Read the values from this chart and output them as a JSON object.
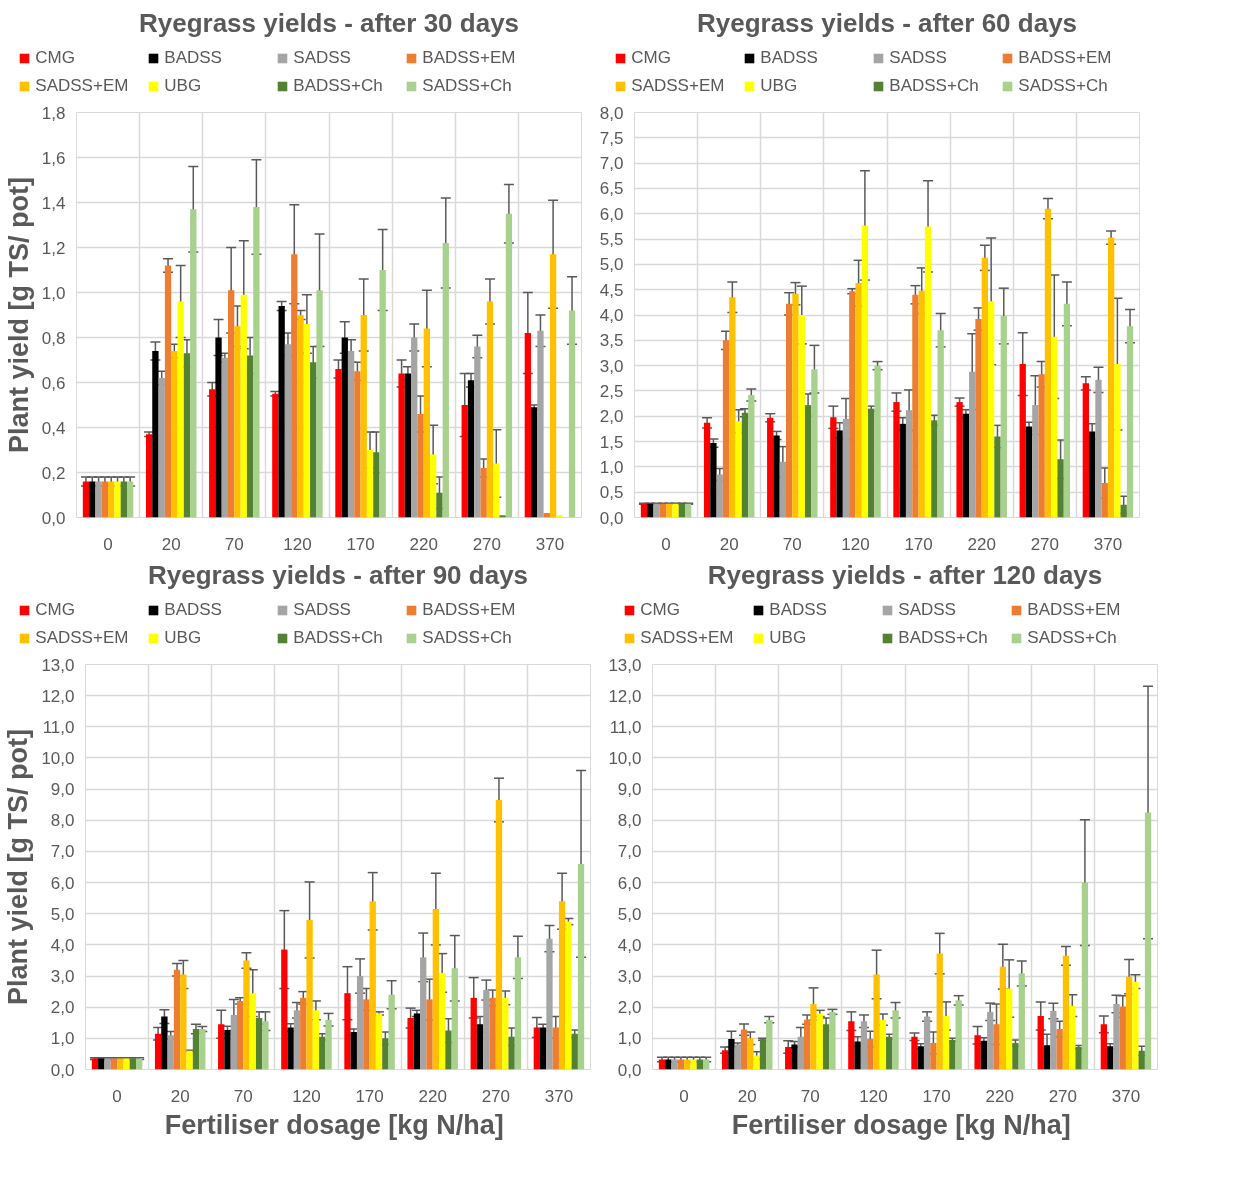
{
  "chart_data": [
    {
      "type": "bar",
      "title": "Ryegrass yields - after 30 days",
      "ylabel": "Plant yield [g TS/ pot]",
      "categories": [
        "0",
        "20",
        "70",
        "120",
        "170",
        "220",
        "270",
        "370"
      ],
      "ylim": [
        0,
        1.8
      ],
      "yticks": [
        {
          "value": 0,
          "label": "0,0"
        },
        {
          "value": 0.2,
          "label": "0,2"
        },
        {
          "value": 0.4,
          "label": "0,4"
        },
        {
          "value": 0.6,
          "label": "0,6"
        },
        {
          "value": 0.8,
          "label": "0,8"
        },
        {
          "value": 1.0,
          "label": "1,0"
        },
        {
          "value": 1.2,
          "label": "1,2"
        },
        {
          "value": 1.4,
          "label": "1,4"
        },
        {
          "value": 1.6,
          "label": "1,6"
        },
        {
          "value": 1.8,
          "label": "1,8"
        }
      ],
      "grid": true,
      "legend": "top",
      "series": [
        {
          "name": "CMG",
          "color": "#ff0000",
          "values": [
            0.16,
            0.37,
            0.57,
            0.55,
            0.66,
            0.64,
            0.5,
            0.82
          ],
          "errors": [
            0.02,
            0.01,
            0.03,
            0.01,
            0.04,
            0.06,
            0.14,
            0.18
          ]
        },
        {
          "name": "BADSS",
          "color": "#000000",
          "values": [
            0.16,
            0.74,
            0.8,
            0.94,
            0.8,
            0.64,
            0.61,
            0.49
          ],
          "errors": [
            0.02,
            0.04,
            0.08,
            0.02,
            0.07,
            0.03,
            0.03,
            0.01
          ]
        },
        {
          "name": "SADSS",
          "color": "#a5a5a5",
          "values": [
            0.16,
            0.62,
            0.71,
            0.77,
            0.74,
            0.8,
            0.76,
            0.83
          ],
          "errors": [
            0.02,
            0.03,
            0.02,
            0.05,
            0.05,
            0.06,
            0.05,
            0.07
          ]
        },
        {
          "name": "BADSS+EM",
          "color": "#ed7d31",
          "values": [
            0.16,
            1.12,
            1.01,
            1.17,
            0.65,
            0.46,
            0.22,
            0.02
          ],
          "errors": [
            0.02,
            0.03,
            0.19,
            0.22,
            0.04,
            0.08,
            0.04,
            null
          ]
        },
        {
          "name": "SADSS+EM",
          "color": "#ffc000",
          "values": [
            0.16,
            0.74,
            0.85,
            0.9,
            0.9,
            0.84,
            0.96,
            1.17
          ],
          "errors": [
            0.02,
            0.03,
            0.09,
            0.02,
            0.16,
            0.17,
            0.1,
            0.24
          ]
        },
        {
          "name": "UBG",
          "color": "#ffff00",
          "values": [
            0.16,
            0.96,
            0.99,
            0.86,
            0.3,
            0.28,
            0.24,
            0.01
          ],
          "errors": [
            0.02,
            0.16,
            0.24,
            0.13,
            0.08,
            0.13,
            0.15,
            null
          ]
        },
        {
          "name": "BADSS+Ch",
          "color": "#548235",
          "values": [
            0.16,
            0.73,
            0.72,
            0.69,
            0.29,
            0.11,
            0.01,
            0
          ],
          "errors": [
            0.02,
            0.06,
            0.08,
            0.07,
            0.09,
            0.07,
            null,
            null
          ]
        },
        {
          "name": "SADSS+Ch",
          "color": "#a9d18e",
          "values": [
            0.16,
            1.37,
            1.38,
            1.01,
            1.1,
            1.22,
            1.35,
            0.92
          ],
          "errors": [
            0.02,
            0.19,
            0.21,
            0.25,
            0.18,
            0.2,
            0.13,
            0.15
          ]
        }
      ]
    },
    {
      "type": "bar",
      "title": "Ryegrass yields - after 60 days",
      "categories": [
        "0",
        "20",
        "70",
        "120",
        "170",
        "220",
        "270",
        "370"
      ],
      "ylim": [
        0,
        8
      ],
      "yticks": [
        {
          "value": 0,
          "label": "0,0"
        },
        {
          "value": 0.5,
          "label": "0,5"
        },
        {
          "value": 1,
          "label": "1,0"
        },
        {
          "value": 1.5,
          "label": "1,5"
        },
        {
          "value": 2,
          "label": "2,0"
        },
        {
          "value": 2.5,
          "label": "2,5"
        },
        {
          "value": 3,
          "label": "3,0"
        },
        {
          "value": 3.5,
          "label": "3,5"
        },
        {
          "value": 4,
          "label": "4,0"
        },
        {
          "value": 4.5,
          "label": "4,5"
        },
        {
          "value": 5,
          "label": "5,0"
        },
        {
          "value": 5.5,
          "label": "5,5"
        },
        {
          "value": 6,
          "label": "6,0"
        },
        {
          "value": 6.5,
          "label": "6,5"
        },
        {
          "value": 7,
          "label": "7,0"
        },
        {
          "value": 7.5,
          "label": "7,5"
        },
        {
          "value": 8,
          "label": "8,0"
        }
      ],
      "grid": true,
      "legend": "top",
      "series": [
        {
          "name": "CMG",
          "color": "#ff0000",
          "values": [
            0.27,
            1.87,
            1.97,
            1.98,
            2.28,
            2.28,
            3.03,
            2.65
          ],
          "errors": [
            0.01,
            0.1,
            0.08,
            0.22,
            0.18,
            0.08,
            0.62,
            0.13
          ]
        },
        {
          "name": "BADSS",
          "color": "#000000",
          "values": [
            0.27,
            1.47,
            1.62,
            1.72,
            1.85,
            2.05,
            1.8,
            1.7
          ],
          "errors": [
            0.01,
            0.08,
            0.08,
            0.15,
            0.12,
            0.08,
            0.08,
            0.15
          ]
        },
        {
          "name": "SADSS",
          "color": "#a5a5a5",
          "values": [
            0.27,
            0.85,
            1.1,
            1.95,
            2.12,
            2.88,
            2.22,
            2.72
          ],
          "errors": [
            0.01,
            0.12,
            0.3,
            0.4,
            0.4,
            0.75,
            0.58,
            0.25
          ]
        },
        {
          "name": "BADSS+EM",
          "color": "#ed7d31",
          "values": [
            0.27,
            3.5,
            4.22,
            4.47,
            4.4,
            3.92,
            2.83,
            0.68
          ],
          "errors": [
            0.01,
            0.18,
            0.22,
            0.05,
            0.18,
            0.22,
            0.25,
            0.3
          ]
        },
        {
          "name": "SADSS+EM",
          "color": "#ffc000",
          "values": [
            0.27,
            4.35,
            4.42,
            4.63,
            4.48,
            5.13,
            6.1,
            5.53
          ],
          "errors": [
            0.01,
            0.3,
            0.22,
            0.45,
            0.45,
            0.25,
            0.2,
            0.13
          ]
        },
        {
          "name": "UBG",
          "color": "#ffff00",
          "values": [
            0.27,
            1.9,
            4.0,
            5.77,
            5.75,
            4.27,
            3.57,
            3.03
          ],
          "errors": [
            0.01,
            0.23,
            0.57,
            1.08,
            0.9,
            1.25,
            1.22,
            1.3
          ]
        },
        {
          "name": "BADSS+Ch",
          "color": "#548235",
          "values": [
            0.27,
            2.07,
            2.22,
            2.15,
            1.92,
            1.6,
            1.15,
            0.25
          ],
          "errors": [
            0.01,
            0.08,
            0.22,
            0.05,
            0.1,
            0.22,
            0.38,
            0.17
          ]
        },
        {
          "name": "SADSS+Ch",
          "color": "#a9d18e",
          "values": [
            0.27,
            2.42,
            2.93,
            3.0,
            3.7,
            3.98,
            4.22,
            3.78
          ],
          "errors": [
            0.01,
            0.12,
            0.47,
            0.08,
            0.33,
            0.55,
            0.43,
            0.33
          ]
        }
      ]
    },
    {
      "type": "bar",
      "title": "Ryegrass yields - after 90 days",
      "ylabel": "Plant yield [g TS/ pot]",
      "xlabel": "Fertiliser dosage  [kg N/ha]",
      "categories": [
        "0",
        "20",
        "70",
        "120",
        "170",
        "220",
        "270",
        "370"
      ],
      "ylim": [
        0,
        13
      ],
      "yticks": [
        {
          "value": 0,
          "label": "0,0"
        },
        {
          "value": 1,
          "label": "1,0"
        },
        {
          "value": 2,
          "label": "2,0"
        },
        {
          "value": 3,
          "label": "3,0"
        },
        {
          "value": 4,
          "label": "4,0"
        },
        {
          "value": 5,
          "label": "5,0"
        },
        {
          "value": 6,
          "label": "6,0"
        },
        {
          "value": 7,
          "label": "7,0"
        },
        {
          "value": 8,
          "label": "8,0"
        },
        {
          "value": 9,
          "label": "9,0"
        },
        {
          "value": 10,
          "label": "10,0"
        },
        {
          "value": 11,
          "label": "11,0"
        },
        {
          "value": 12,
          "label": "12,0"
        },
        {
          "value": 13,
          "label": "13,0"
        }
      ],
      "grid": true,
      "legend": "top",
      "series": [
        {
          "name": "CMG",
          "color": "#ff0000",
          "values": [
            0.35,
            1.15,
            1.45,
            3.85,
            2.45,
            1.65,
            2.3,
            1.35
          ],
          "errors": [
            0.03,
            0.2,
            0.45,
            1.25,
            0.85,
            0.32,
            0.65,
            0.32
          ]
        },
        {
          "name": "BADSS",
          "color": "#000000",
          "values": [
            0.35,
            1.7,
            1.27,
            1.35,
            1.2,
            1.8,
            1.45,
            1.35
          ],
          "errors": [
            0.03,
            0.22,
            0.12,
            0.12,
            0.1,
            0.1,
            0.25,
            0.1
          ]
        },
        {
          "name": "SADSS",
          "color": "#a5a5a5",
          "values": [
            0.35,
            1.1,
            1.75,
            1.9,
            3.0,
            3.6,
            2.55,
            4.2
          ],
          "errors": [
            0.03,
            0.12,
            0.5,
            0.25,
            0.55,
            0.78,
            0.32,
            0.42
          ]
        },
        {
          "name": "BADSS+EM",
          "color": "#ed7d31",
          "values": [
            0.35,
            3.2,
            2.2,
            2.3,
            2.25,
            2.25,
            2.3,
            1.35
          ],
          "errors": [
            0.03,
            0.2,
            0.1,
            0.2,
            0.35,
            0.65,
            0.25,
            0.35
          ]
        },
        {
          "name": "SADSS+EM",
          "color": "#ffc000",
          "values": [
            0.35,
            3.05,
            3.5,
            4.8,
            5.4,
            5.15,
            8.65,
            5.4
          ],
          "errors": [
            0.03,
            0.45,
            0.25,
            1.22,
            0.92,
            1.15,
            0.7,
            0.9
          ]
        },
        {
          "name": "UBG",
          "color": "#ffff00",
          "values": [
            0.35,
            0.6,
            2.45,
            1.9,
            1.8,
            3.1,
            2.3,
            4.75
          ],
          "errors": [
            0.03,
            0.02,
            0.75,
            0.3,
            0.05,
            0.62,
            0.22,
            0.1
          ]
        },
        {
          "name": "BADSS+Ch",
          "color": "#548235",
          "values": [
            0.35,
            1.3,
            1.65,
            1.05,
            1.0,
            1.25,
            1.05,
            1.15
          ],
          "errors": [
            0.03,
            0.15,
            0.2,
            0.1,
            0.2,
            0.38,
            0.28,
            0.12
          ]
        },
        {
          "name": "SADSS+Ch",
          "color": "#a9d18e",
          "values": [
            0.35,
            1.3,
            1.55,
            1.6,
            2.4,
            3.25,
            3.6,
            6.6
          ],
          "errors": [
            0.03,
            0.08,
            0.3,
            0.2,
            0.45,
            1.05,
            0.68,
            3.0
          ]
        }
      ]
    },
    {
      "type": "bar",
      "title": "Ryegrass yields - after 120 days",
      "xlabel": "Fertiliser dosage  [kg N/ha]",
      "categories": [
        "0",
        "20",
        "70",
        "120",
        "170",
        "220",
        "270",
        "370"
      ],
      "ylim": [
        0,
        13
      ],
      "yticks": [
        {
          "value": 0,
          "label": "0,0"
        },
        {
          "value": 1,
          "label": "1,0"
        },
        {
          "value": 2,
          "label": "2,0"
        },
        {
          "value": 3,
          "label": "3,0"
        },
        {
          "value": 4,
          "label": "4,0"
        },
        {
          "value": 5,
          "label": "5,0"
        },
        {
          "value": 6,
          "label": "6,0"
        },
        {
          "value": 7,
          "label": "7,0"
        },
        {
          "value": 8,
          "label": "8,0"
        },
        {
          "value": 9,
          "label": "9,0"
        },
        {
          "value": 10,
          "label": "10,0"
        },
        {
          "value": 11,
          "label": "11,0"
        },
        {
          "value": 12,
          "label": "12,0"
        },
        {
          "value": 13,
          "label": "13,0"
        }
      ],
      "grid": true,
      "legend": "top",
      "series": [
        {
          "name": "CMG",
          "color": "#ff0000",
          "values": [
            0.32,
            0.62,
            0.72,
            1.55,
            1.05,
            1.1,
            1.72,
            1.45
          ],
          "errors": [
            0.07,
            0.1,
            0.2,
            0.3,
            0.12,
            0.28,
            0.45,
            0.27
          ]
        },
        {
          "name": "BADSS",
          "color": "#000000",
          "values": [
            0.32,
            0.98,
            0.8,
            0.9,
            0.75,
            0.92,
            0.78,
            0.75
          ],
          "errors": [
            0.07,
            0.25,
            0.1,
            0.15,
            0.08,
            0.1,
            0.35,
            0.08
          ]
        },
        {
          "name": "SADSS",
          "color": "#a5a5a5",
          "values": [
            0.32,
            0.8,
            1.05,
            1.55,
            1.7,
            1.85,
            1.88,
            2.1
          ],
          "errors": [
            0.07,
            0.05,
            0.3,
            0.2,
            0.15,
            0.28,
            0.25,
            0.28
          ]
        },
        {
          "name": "BADSS+EM",
          "color": "#ed7d31",
          "values": [
            0.32,
            1.28,
            1.6,
            0.98,
            0.85,
            1.45,
            1.3,
            2.02
          ],
          "errors": [
            0.07,
            0.18,
            0.15,
            0.25,
            0.35,
            0.65,
            0.25,
            0.35
          ]
        },
        {
          "name": "SADSS+EM",
          "color": "#ffc000",
          "values": [
            0.32,
            1.0,
            2.1,
            3.05,
            3.72,
            3.3,
            3.65,
            2.98
          ],
          "errors": [
            0.07,
            0.2,
            0.52,
            0.78,
            0.65,
            0.72,
            0.3,
            0.55
          ]
        },
        {
          "name": "UBG",
          "color": "#ffff00",
          "values": [
            0.32,
            0.45,
            1.8,
            1.6,
            1.72,
            2.6,
            2.05,
            2.82
          ],
          "errors": [
            0.07,
            0.12,
            0.1,
            0.18,
            0.45,
            0.92,
            0.35,
            0.22
          ]
        },
        {
          "name": "BADSS+Ch",
          "color": "#548235",
          "values": [
            0.32,
            0.97,
            1.45,
            1.05,
            0.95,
            0.85,
            0.72,
            0.6
          ],
          "errors": [
            0.07,
            0.03,
            0.2,
            0.08,
            0.05,
            0.1,
            0.05,
            0.15
          ]
        },
        {
          "name": "SADSS+Ch",
          "color": "#a9d18e",
          "values": [
            0.32,
            1.6,
            1.85,
            1.9,
            2.22,
            3.08,
            6.0,
            8.25
          ],
          "errors": [
            0.07,
            0.1,
            0.08,
            0.25,
            0.15,
            0.4,
            2.02,
            4.05
          ]
        }
      ]
    }
  ]
}
